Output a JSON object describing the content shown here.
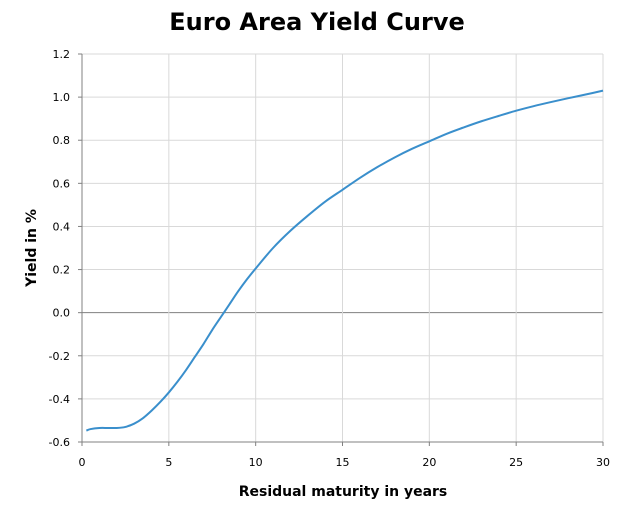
{
  "chart_data": {
    "type": "line",
    "title": "Euro Area Yield Curve",
    "xlabel": "Residual maturity in years",
    "ylabel": "Yield in %",
    "xlim": [
      0,
      30
    ],
    "ylim": [
      -0.6,
      1.2
    ],
    "x_ticks": [
      0,
      5,
      10,
      15,
      20,
      25,
      30
    ],
    "y_ticks": [
      1.2,
      1.0,
      0.8,
      0.6,
      0.4,
      0.2,
      0.0,
      -0.2,
      -0.4,
      -0.6
    ],
    "x_tick_labels": [
      "0",
      "5",
      "10",
      "15",
      "20",
      "25",
      "30"
    ],
    "y_tick_labels": [
      "1.2",
      "1.0",
      "0.8",
      "0.6",
      "0.4",
      "0.2",
      "0.0",
      "-0.2",
      "-0.4",
      "-0.6"
    ],
    "grid": true,
    "colors": {
      "line": "#3a8fcc",
      "grid": "#d9d9d9",
      "zero_line": "#808080",
      "axis": "#808080"
    },
    "series": [
      {
        "x": [
          0.25,
          0.5,
          1,
          1.5,
          2,
          2.5,
          3,
          3.5,
          4,
          4.5,
          5,
          5.5,
          6,
          6.5,
          7,
          7.5,
          8,
          8.5,
          9,
          9.5,
          10,
          11,
          12,
          13,
          14,
          15,
          16,
          17,
          18,
          19,
          20,
          21,
          22,
          23,
          24,
          25,
          26,
          27,
          28,
          29,
          30
        ],
        "values": [
          -0.547,
          -0.54,
          -0.535,
          -0.535,
          -0.535,
          -0.53,
          -0.515,
          -0.49,
          -0.455,
          -0.415,
          -0.37,
          -0.32,
          -0.265,
          -0.205,
          -0.145,
          -0.08,
          -0.02,
          0.04,
          0.1,
          0.155,
          0.205,
          0.3,
          0.38,
          0.45,
          0.515,
          0.57,
          0.625,
          0.675,
          0.72,
          0.76,
          0.795,
          0.83,
          0.86,
          0.888,
          0.913,
          0.937,
          0.958,
          0.977,
          0.995,
          1.012,
          1.03
        ]
      }
    ]
  }
}
